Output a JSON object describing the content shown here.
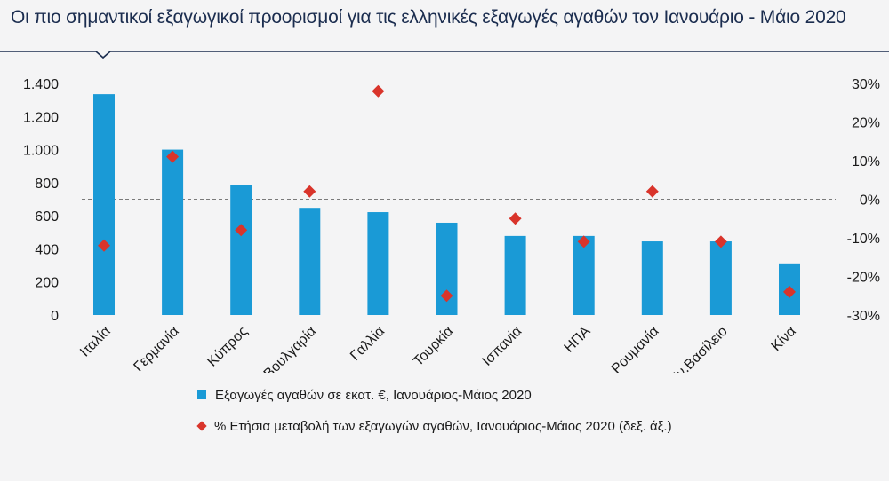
{
  "title": "Οι πιο σημαντικοί εξαγωγικοί προορισμοί για τις ελληνικές εξαγωγές αγαθών τον Ιανουάριο - Μάιο 2020",
  "colors": {
    "bar": "#1a9ad6",
    "marker": "#d9342b",
    "title_rule": "#1b2d4f",
    "zero_line": "#7a7a7a"
  },
  "chart_data": {
    "type": "bar",
    "categories": [
      "Ιταλία",
      "Γερμανία",
      "Κύπρος",
      "Βουλγαρία",
      "Γαλλία",
      "Τουρκία",
      "Ισπανία",
      "ΗΠΑ",
      "Ρουμανία",
      "Ην.Βασίλειο",
      "Κίνα"
    ],
    "series": [
      {
        "name": "Εξαγωγές αγαθών σε εκατ. €, Ιανουάριος-Μάιος 2020",
        "type": "bar",
        "axis": "left",
        "values": [
          1335,
          1000,
          785,
          648,
          622,
          558,
          478,
          478,
          445,
          445,
          312
        ]
      },
      {
        "name": "% Ετήσια μεταβολή των εξαγωγών αγαθών, Ιανουάριος-Μάιος 2020 (δεξ. άξ.)",
        "type": "scatter",
        "axis": "right",
        "values": [
          -12,
          11,
          -8,
          2,
          28,
          -25,
          -5,
          -11,
          2,
          -11,
          -24
        ]
      }
    ],
    "y_left": {
      "range": [
        0,
        1400
      ],
      "ticks": [
        0,
        200,
        400,
        600,
        800,
        1000,
        1200,
        1400
      ],
      "tick_labels": [
        "0",
        "200",
        "400",
        "600",
        "800",
        "1.000",
        "1.200",
        "1.400"
      ]
    },
    "y_right": {
      "range": [
        -30,
        30
      ],
      "ticks": [
        -30,
        -20,
        -10,
        0,
        10,
        20,
        30
      ],
      "tick_labels": [
        "-30%",
        "-20%",
        "-10%",
        "0%",
        "10%",
        "20%",
        "30%"
      ]
    },
    "grid": false,
    "zero_reference_line": "dashed",
    "legend_position": "bottom"
  },
  "legend": [
    {
      "label": "Εξαγωγές αγαθών σε εκατ. €, Ιανουάριος-Μάιος  2020"
    },
    {
      "label": "% Ετήσια  μεταβολή των εξαγωγών αγαθών, Ιανουάριος-Μάιος  2020 (δεξ. άξ.)"
    }
  ]
}
